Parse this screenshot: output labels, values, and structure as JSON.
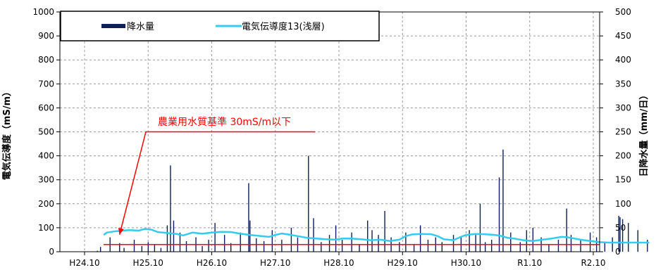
{
  "chart_data": {
    "type": "line",
    "x_tick_labels": [
      "H24.10",
      "H25.10",
      "H26.10",
      "H27.10",
      "H28.10",
      "H29.10",
      "H30.10",
      "R1.10",
      "R2.10"
    ],
    "y_left": {
      "label": "電気伝導度（mS/m）",
      "lim": [
        0,
        1000
      ],
      "ticks": [
        0,
        100,
        200,
        300,
        400,
        500,
        600,
        700,
        800,
        900,
        1000
      ]
    },
    "y_right": {
      "label": "日降水量（mm/日）",
      "lim": [
        0,
        500
      ],
      "ticks": [
        0,
        50,
        100,
        150,
        200,
        250,
        300,
        350,
        400,
        450,
        500
      ]
    },
    "grid": true,
    "legend": {
      "placement": "top-left"
    },
    "series": [
      {
        "name": "降水量",
        "axis": "right",
        "kind": "bar",
        "color": "#0d1f5c",
        "spikes": [
          [
            0.2,
            2
          ],
          [
            0.25,
            10
          ],
          [
            0.4,
            30
          ],
          [
            0.55,
            18
          ],
          [
            0.62,
            8
          ],
          [
            0.78,
            25
          ],
          [
            0.9,
            12
          ],
          [
            1.0,
            20
          ],
          [
            1.1,
            15
          ],
          [
            1.2,
            8
          ],
          [
            1.3,
            55
          ],
          [
            1.35,
            180
          ],
          [
            1.4,
            65
          ],
          [
            1.5,
            40
          ],
          [
            1.6,
            22
          ],
          [
            1.75,
            30
          ],
          [
            1.85,
            12
          ],
          [
            1.95,
            25
          ],
          [
            2.05,
            60
          ],
          [
            2.2,
            35
          ],
          [
            2.3,
            18
          ],
          [
            2.45,
            40
          ],
          [
            2.58,
            143
          ],
          [
            2.6,
            65
          ],
          [
            2.7,
            28
          ],
          [
            2.82,
            22
          ],
          [
            2.95,
            45
          ],
          [
            3.1,
            25
          ],
          [
            3.25,
            50
          ],
          [
            3.35,
            30
          ],
          [
            3.52,
            200
          ],
          [
            3.6,
            70
          ],
          [
            3.72,
            20
          ],
          [
            3.85,
            35
          ],
          [
            3.95,
            55
          ],
          [
            4.05,
            25
          ],
          [
            4.2,
            40
          ],
          [
            4.32,
            15
          ],
          [
            4.45,
            65
          ],
          [
            4.52,
            45
          ],
          [
            4.62,
            35
          ],
          [
            4.72,
            85
          ],
          [
            4.82,
            30
          ],
          [
            4.95,
            20
          ],
          [
            5.05,
            40
          ],
          [
            5.18,
            15
          ],
          [
            5.28,
            55
          ],
          [
            5.4,
            25
          ],
          [
            5.52,
            30
          ],
          [
            5.62,
            20
          ],
          [
            5.8,
            35
          ],
          [
            5.92,
            30
          ],
          [
            6.05,
            45
          ],
          [
            6.15,
            35
          ],
          [
            6.22,
            100
          ],
          [
            6.3,
            20
          ],
          [
            6.4,
            25
          ],
          [
            6.52,
            155
          ],
          [
            6.58,
            213
          ],
          [
            6.7,
            40
          ],
          [
            6.85,
            20
          ],
          [
            6.95,
            45
          ],
          [
            7.05,
            50
          ],
          [
            7.18,
            30
          ],
          [
            7.3,
            15
          ],
          [
            7.45,
            25
          ],
          [
            7.58,
            90
          ],
          [
            7.65,
            35
          ],
          [
            7.8,
            25
          ],
          [
            7.95,
            40
          ],
          [
            8.05,
            30
          ],
          [
            8.18,
            20
          ],
          [
            8.3,
            30
          ],
          [
            8.4,
            75
          ],
          [
            8.42,
            72
          ],
          [
            8.46,
            68
          ],
          [
            8.55,
            60
          ],
          [
            8.7,
            45
          ],
          [
            8.85,
            25
          ]
        ]
      },
      {
        "name": "電気伝導度13(浅層)",
        "axis": "left",
        "kind": "line",
        "color": "#33ccf0",
        "points": [
          [
            0.3,
            70
          ],
          [
            0.35,
            80
          ],
          [
            0.5,
            86
          ],
          [
            0.7,
            90
          ],
          [
            0.85,
            88
          ],
          [
            0.95,
            95
          ],
          [
            1.05,
            92
          ],
          [
            1.15,
            82
          ],
          [
            1.3,
            78
          ],
          [
            1.45,
            74
          ],
          [
            1.55,
            68
          ],
          [
            1.7,
            80
          ],
          [
            1.85,
            75
          ],
          [
            2.0,
            80
          ],
          [
            2.15,
            83
          ],
          [
            2.3,
            82
          ],
          [
            2.45,
            75
          ],
          [
            2.6,
            70
          ],
          [
            2.75,
            66
          ],
          [
            2.9,
            62
          ],
          [
            3.0,
            70
          ],
          [
            3.1,
            76
          ],
          [
            3.2,
            72
          ],
          [
            3.35,
            65
          ],
          [
            3.5,
            58
          ],
          [
            3.65,
            55
          ],
          [
            3.8,
            52
          ],
          [
            3.95,
            50
          ],
          [
            4.05,
            55
          ],
          [
            4.2,
            55
          ],
          [
            4.35,
            52
          ],
          [
            4.5,
            48
          ],
          [
            4.65,
            50
          ],
          [
            4.8,
            45
          ],
          [
            4.95,
            50
          ],
          [
            5.05,
            65
          ],
          [
            5.15,
            72
          ],
          [
            5.3,
            74
          ],
          [
            5.45,
            73
          ],
          [
            5.55,
            65
          ],
          [
            5.65,
            52
          ],
          [
            5.8,
            48
          ],
          [
            5.9,
            60
          ],
          [
            6.0,
            70
          ],
          [
            6.15,
            74
          ],
          [
            6.3,
            73
          ],
          [
            6.45,
            70
          ],
          [
            6.55,
            66
          ],
          [
            6.65,
            58
          ],
          [
            6.75,
            55
          ],
          [
            6.9,
            48
          ],
          [
            7.05,
            45
          ],
          [
            7.2,
            50
          ],
          [
            7.35,
            55
          ],
          [
            7.5,
            62
          ],
          [
            7.6,
            60
          ],
          [
            7.7,
            55
          ],
          [
            7.8,
            50
          ],
          [
            7.95,
            45
          ],
          [
            8.1,
            40
          ],
          [
            8.25,
            38
          ],
          [
            8.4,
            38
          ],
          [
            8.55,
            38
          ],
          [
            8.7,
            38
          ],
          [
            8.88,
            38
          ]
        ]
      },
      {
        "name": "農業用水質基準 30mS/m以下",
        "axis": "left",
        "kind": "hline",
        "value": 30,
        "color": "#ff0000"
      }
    ],
    "annotations": [
      {
        "text": "農業用水質基準 30mS/m以下",
        "color": "#ff0000",
        "points_to": [
          0.55,
          30
        ]
      }
    ]
  }
}
